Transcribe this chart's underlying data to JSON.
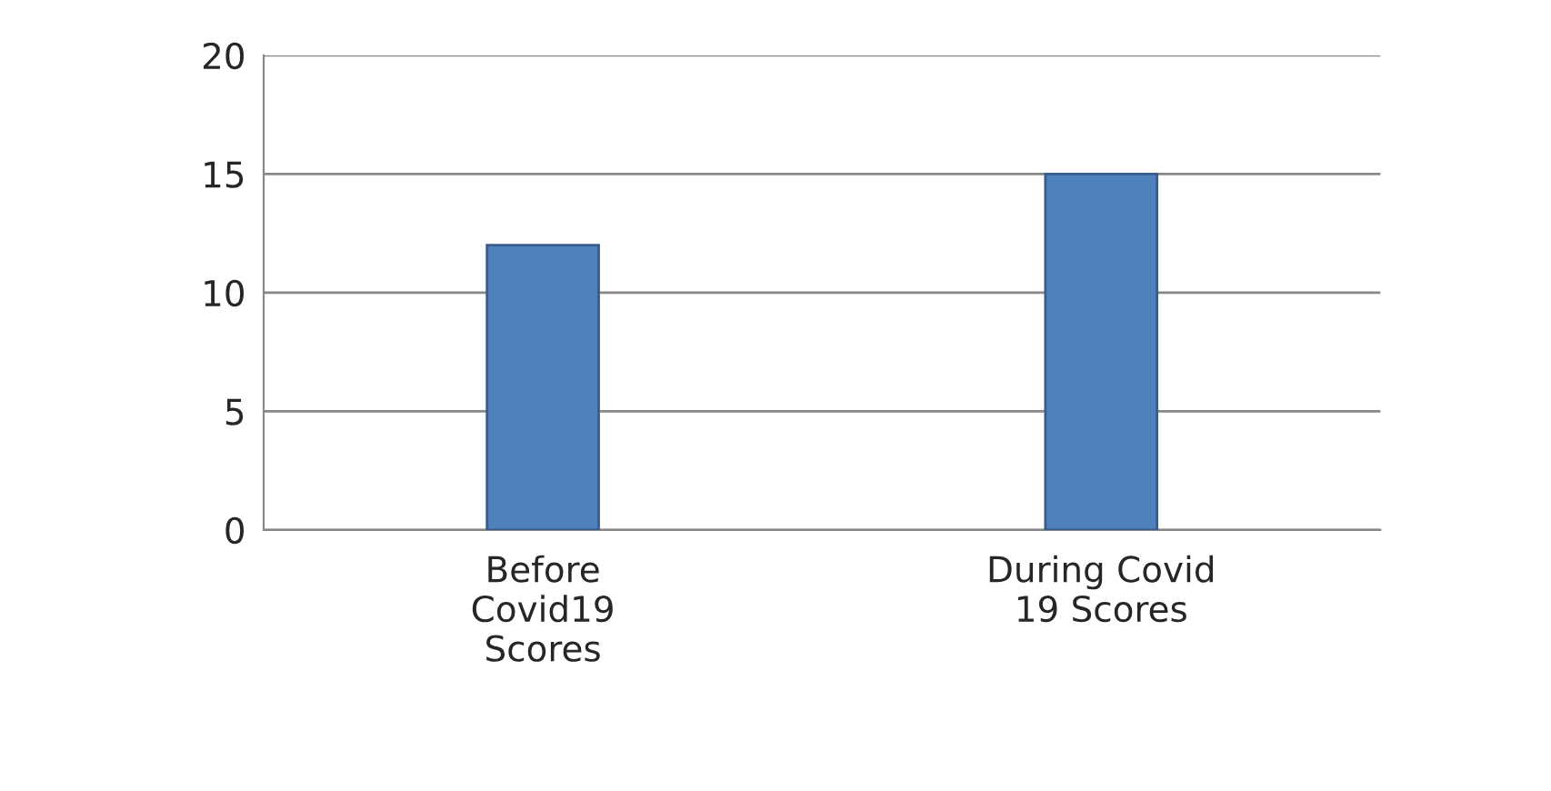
{
  "chart_data": {
    "type": "bar",
    "categories": [
      "Before\nCovid19\nScores",
      "During Covid\n19 Scores"
    ],
    "values": [
      12,
      15
    ],
    "color": "#4f81bd",
    "ylim": [
      0,
      20
    ],
    "yticks": [
      0,
      5,
      10,
      15,
      20
    ],
    "grid": "y"
  }
}
